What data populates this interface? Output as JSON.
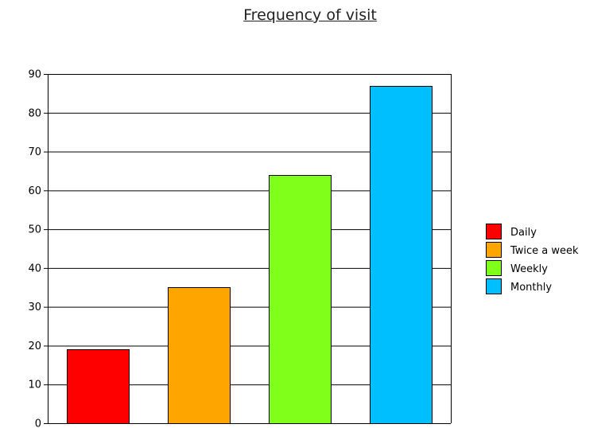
{
  "chart_data": {
    "type": "bar",
    "title": "Frequency of visit",
    "categories": [
      "Daily",
      "Twice a week",
      "Weekly",
      "Monthly"
    ],
    "values": [
      19,
      35,
      64,
      87
    ],
    "colors": [
      "#ff0000",
      "#ffa500",
      "#80ff1a",
      "#00bfff"
    ],
    "xlabel": "",
    "ylabel": "",
    "ylim": [
      0,
      90
    ],
    "yticks": [
      0,
      10,
      20,
      30,
      40,
      50,
      60,
      70,
      80,
      90
    ],
    "grid": true,
    "legend": {
      "position": "right",
      "entries": [
        "Daily",
        "Twice a week",
        "Weekly",
        "Monthly"
      ]
    }
  }
}
